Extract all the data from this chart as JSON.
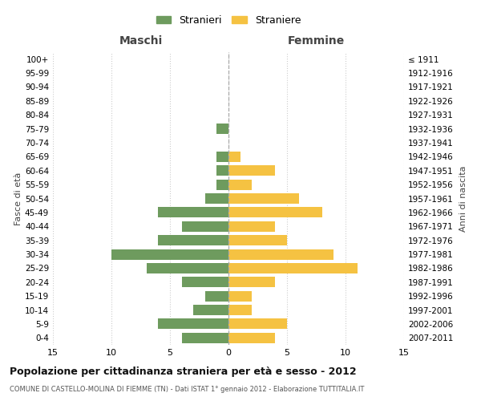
{
  "age_groups": [
    "100+",
    "95-99",
    "90-94",
    "85-89",
    "80-84",
    "75-79",
    "70-74",
    "65-69",
    "60-64",
    "55-59",
    "50-54",
    "45-49",
    "40-44",
    "35-39",
    "30-34",
    "25-29",
    "20-24",
    "15-19",
    "10-14",
    "5-9",
    "0-4"
  ],
  "birth_years": [
    "≤ 1911",
    "1912-1916",
    "1917-1921",
    "1922-1926",
    "1927-1931",
    "1932-1936",
    "1937-1941",
    "1942-1946",
    "1947-1951",
    "1952-1956",
    "1957-1961",
    "1962-1966",
    "1967-1971",
    "1972-1976",
    "1977-1981",
    "1982-1986",
    "1987-1991",
    "1992-1996",
    "1997-2001",
    "2002-2006",
    "2007-2011"
  ],
  "maschi": [
    0,
    0,
    0,
    0,
    0,
    1,
    0,
    1,
    1,
    1,
    2,
    6,
    4,
    6,
    10,
    7,
    4,
    2,
    3,
    6,
    4
  ],
  "femmine": [
    0,
    0,
    0,
    0,
    0,
    0,
    0,
    1,
    4,
    2,
    6,
    8,
    4,
    5,
    9,
    11,
    4,
    2,
    2,
    5,
    4
  ],
  "maschi_color": "#6e9b5e",
  "femmine_color": "#f5c242",
  "title": "Popolazione per cittadinanza straniera per età e sesso - 2012",
  "subtitle": "COMUNE DI CASTELLO-MOLINA DI FIEMME (TN) - Dati ISTAT 1° gennaio 2012 - Elaborazione TUTTITALIA.IT",
  "legend_maschi": "Stranieri",
  "legend_femmine": "Straniere",
  "xlabel_left": "Maschi",
  "xlabel_right": "Femmine",
  "ylabel": "Fasce di età",
  "ylabel_right": "Anni di nascita",
  "xlim": 15,
  "background_color": "#ffffff",
  "grid_color": "#cccccc"
}
